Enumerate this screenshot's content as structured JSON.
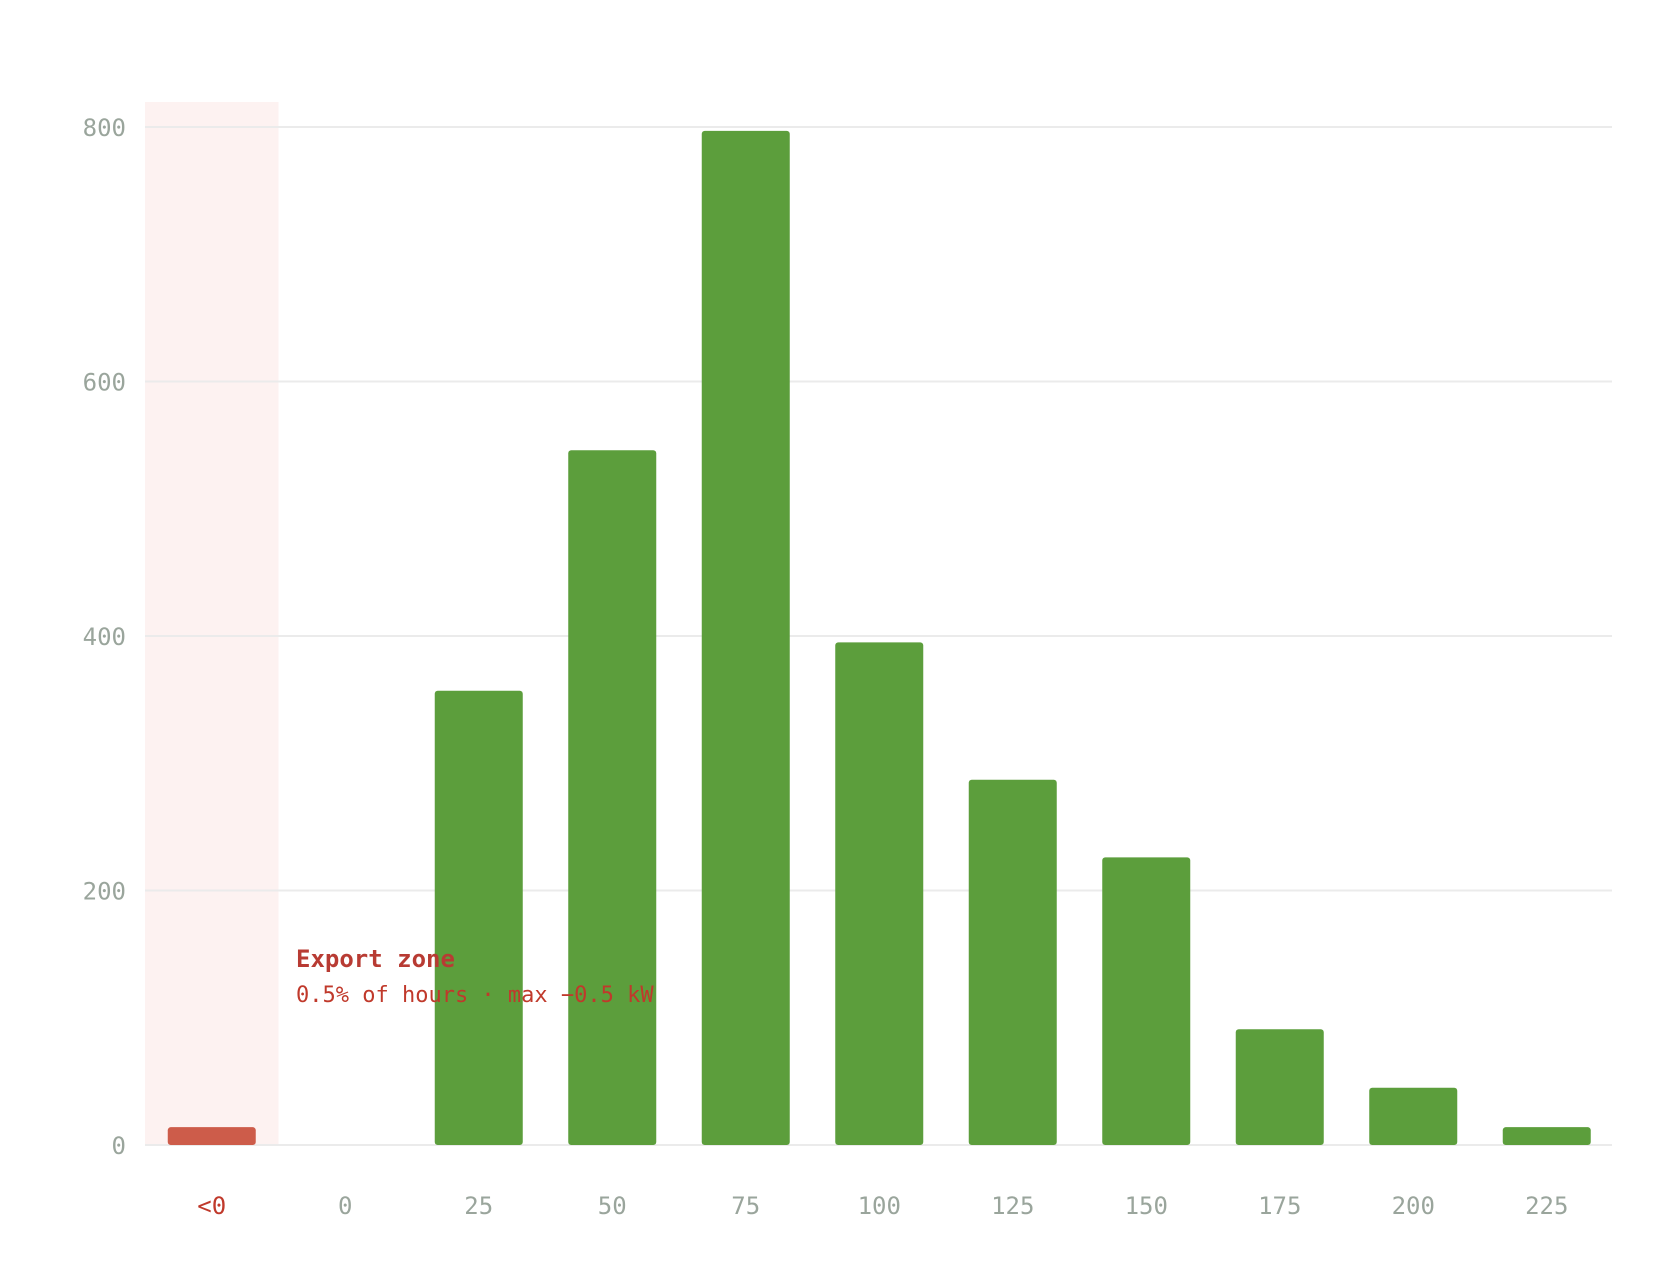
{
  "colors": {
    "positive_bar": "#5c9e3c",
    "negative_bar": "#cd5c4a",
    "export_zone_bg": "#fdf2f1",
    "grid": "#ebebeb",
    "tick_text": "#9aa59c",
    "annotation_text": "#c0392b"
  },
  "chart_data": {
    "type": "bar",
    "categories": [
      "<0",
      "0",
      "25",
      "50",
      "75",
      "100",
      "125",
      "150",
      "175",
      "200",
      "225"
    ],
    "values": [
      14,
      0,
      357,
      546,
      797,
      395,
      287,
      226,
      91,
      45,
      14
    ],
    "ylim": [
      0,
      800
    ],
    "y_ticks": [
      0,
      200,
      400,
      600,
      800
    ],
    "y_tick_labels": [
      "0",
      "200",
      "400",
      "600",
      "800"
    ],
    "grid": true,
    "highlight_category": "<0",
    "annotation": {
      "title": "Export zone",
      "subtitle": "0.5% of hours · max −0.5 kW"
    }
  }
}
